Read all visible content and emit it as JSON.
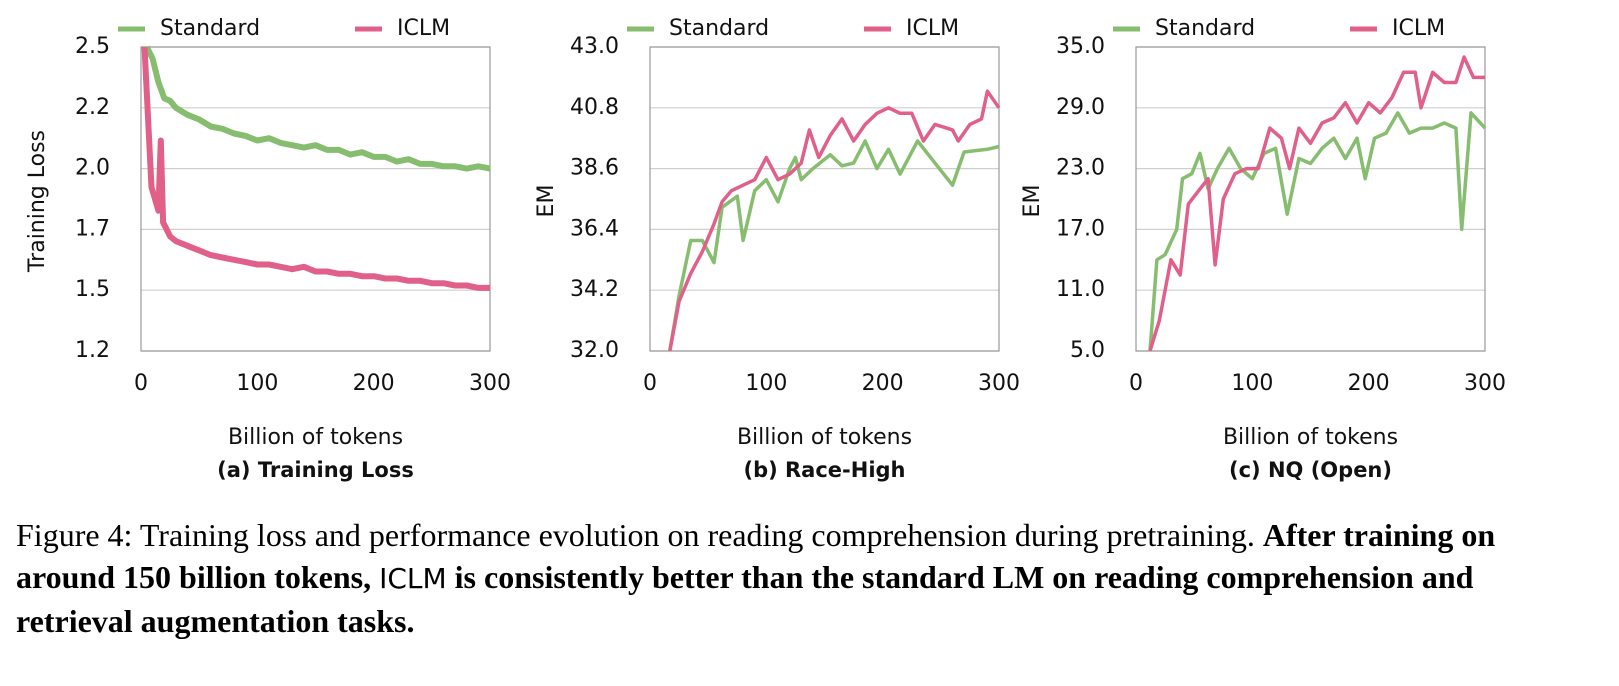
{
  "chart_data": [
    {
      "type": "line",
      "title": "(a) Training Loss",
      "x_label": "Billion of tokens",
      "y_label": "Training Loss",
      "xlim": [
        0,
        300
      ],
      "xticks": [
        0,
        100,
        200,
        300
      ],
      "ylim": [
        1.2,
        2.5
      ],
      "yticks": [
        {
          "value": 1.2,
          "label": "1.2"
        },
        {
          "value": 1.46,
          "label": "1.5"
        },
        {
          "value": 1.72,
          "label": "1.7"
        },
        {
          "value": 1.98,
          "label": "2.0"
        },
        {
          "value": 2.24,
          "label": "2.2"
        },
        {
          "value": 2.5,
          "label": "2.5"
        }
      ],
      "grid": true,
      "series": [
        {
          "name": "Standard",
          "color": "#86bd6f",
          "x": [
            5,
            10,
            15,
            20,
            25,
            30,
            40,
            50,
            60,
            70,
            80,
            90,
            100,
            110,
            120,
            130,
            140,
            150,
            160,
            170,
            180,
            190,
            200,
            210,
            220,
            230,
            240,
            250,
            260,
            270,
            280,
            290,
            300
          ],
          "values": [
            2.5,
            2.45,
            2.35,
            2.28,
            2.27,
            2.24,
            2.21,
            2.19,
            2.16,
            2.15,
            2.13,
            2.12,
            2.1,
            2.11,
            2.09,
            2.08,
            2.07,
            2.08,
            2.06,
            2.06,
            2.04,
            2.05,
            2.03,
            2.03,
            2.01,
            2.02,
            2.0,
            2.0,
            1.99,
            1.99,
            1.98,
            1.99,
            1.98
          ]
        },
        {
          "name": "ICLM",
          "color": "#e0608a",
          "x": [
            3,
            6,
            9,
            12,
            15,
            17,
            19,
            22,
            25,
            30,
            40,
            50,
            60,
            70,
            80,
            90,
            100,
            110,
            120,
            130,
            140,
            150,
            160,
            170,
            180,
            190,
            200,
            210,
            220,
            230,
            240,
            250,
            260,
            270,
            280,
            290,
            300
          ],
          "values": [
            2.5,
            2.2,
            1.9,
            1.85,
            1.8,
            2.1,
            1.75,
            1.72,
            1.69,
            1.67,
            1.65,
            1.63,
            1.61,
            1.6,
            1.59,
            1.58,
            1.57,
            1.57,
            1.56,
            1.55,
            1.56,
            1.54,
            1.54,
            1.53,
            1.53,
            1.52,
            1.52,
            1.51,
            1.51,
            1.5,
            1.5,
            1.49,
            1.49,
            1.48,
            1.48,
            1.47,
            1.47
          ]
        }
      ]
    },
    {
      "type": "line",
      "title": "(b) Race-High",
      "x_label": "Billion of tokens",
      "y_label": "EM",
      "xlim": [
        0,
        300
      ],
      "xticks": [
        0,
        100,
        200,
        300
      ],
      "ylim": [
        32,
        43
      ],
      "yticks": [
        {
          "value": 32,
          "label": "32.0"
        },
        {
          "value": 34.2,
          "label": "34.2"
        },
        {
          "value": 36.4,
          "label": "36.4"
        },
        {
          "value": 38.6,
          "label": "38.6"
        },
        {
          "value": 40.8,
          "label": "40.8"
        },
        {
          "value": 43,
          "label": "43.0"
        }
      ],
      "grid": true,
      "series": [
        {
          "name": "Standard",
          "color": "#86bd6f",
          "x": [
            17,
            25,
            35,
            45,
            55,
            62,
            75,
            80,
            90,
            100,
            110,
            120,
            125,
            130,
            140,
            155,
            165,
            175,
            185,
            195,
            205,
            215,
            230,
            245,
            260,
            270,
            290,
            300
          ],
          "values": [
            32.0,
            34.0,
            36.0,
            36.0,
            35.2,
            37.2,
            37.6,
            36.0,
            37.8,
            38.2,
            37.4,
            38.6,
            39.0,
            38.2,
            38.6,
            39.1,
            38.7,
            38.8,
            39.6,
            38.6,
            39.3,
            38.4,
            39.6,
            38.8,
            38.0,
            39.2,
            39.3,
            39.4
          ]
        },
        {
          "name": "ICLM",
          "color": "#e0608a",
          "x": [
            17,
            25,
            35,
            45,
            55,
            62,
            70,
            80,
            90,
            100,
            110,
            120,
            130,
            137,
            145,
            155,
            165,
            175,
            185,
            195,
            205,
            215,
            225,
            235,
            245,
            260,
            265,
            275,
            285,
            290,
            300
          ],
          "values": [
            32.0,
            33.8,
            34.8,
            35.6,
            36.6,
            37.4,
            37.8,
            38.0,
            38.2,
            39.0,
            38.2,
            38.4,
            38.8,
            40.0,
            39.0,
            39.8,
            40.4,
            39.6,
            40.2,
            40.6,
            40.8,
            40.6,
            40.6,
            39.6,
            40.2,
            40.0,
            39.6,
            40.2,
            40.4,
            41.4,
            40.8
          ]
        }
      ]
    },
    {
      "type": "line",
      "title": "(c) NQ (Open)",
      "x_label": "Billion of tokens",
      "y_label": "EM",
      "xlim": [
        0,
        300
      ],
      "xticks": [
        0,
        100,
        200,
        300
      ],
      "ylim": [
        5,
        35
      ],
      "yticks": [
        {
          "value": 5,
          "label": "5.0"
        },
        {
          "value": 11,
          "label": "11.0"
        },
        {
          "value": 17,
          "label": "17.0"
        },
        {
          "value": 23,
          "label": "23.0"
        },
        {
          "value": 29,
          "label": "29.0"
        },
        {
          "value": 35,
          "label": "35.0"
        }
      ],
      "grid": true,
      "series": [
        {
          "name": "Standard",
          "color": "#86bd6f",
          "x": [
            12,
            18,
            25,
            35,
            40,
            48,
            55,
            62,
            70,
            80,
            90,
            100,
            110,
            120,
            130,
            140,
            150,
            160,
            170,
            180,
            190,
            197,
            205,
            215,
            225,
            235,
            245,
            255,
            265,
            275,
            280,
            288,
            300
          ],
          "values": [
            5,
            14,
            14.5,
            17,
            22,
            22.5,
            24.5,
            21,
            23,
            25,
            23,
            22,
            24.5,
            25,
            18.5,
            24,
            23.5,
            25,
            26,
            24,
            26,
            22,
            26,
            26.5,
            28.5,
            26.5,
            27,
            27,
            27.5,
            27,
            17,
            28.5,
            27
          ]
        },
        {
          "name": "ICLM",
          "color": "#e0608a",
          "x": [
            12,
            20,
            30,
            38,
            45,
            55,
            62,
            68,
            75,
            85,
            95,
            105,
            115,
            125,
            132,
            140,
            150,
            160,
            170,
            180,
            190,
            200,
            210,
            220,
            230,
            240,
            245,
            255,
            265,
            275,
            282,
            290,
            300
          ],
          "values": [
            5,
            8,
            14,
            12.5,
            19.5,
            21,
            22,
            13.5,
            20,
            22.5,
            23,
            23,
            27,
            26,
            23,
            27,
            25.5,
            27.5,
            28,
            29.5,
            27.5,
            29.5,
            28.5,
            30,
            32.5,
            32.5,
            29,
            32.5,
            31.5,
            31.5,
            34,
            32,
            32
          ]
        }
      ]
    }
  ],
  "caption": {
    "lead": "Figure 4: Training loss and performance evolution on reading comprehension during pretraining.",
    "bold_1": "After training on around 150 billion tokens,",
    "method": "ICLM",
    "bold_2": "is consistently better than the standard LM on reading comprehension and retrieval augmentation tasks."
  }
}
